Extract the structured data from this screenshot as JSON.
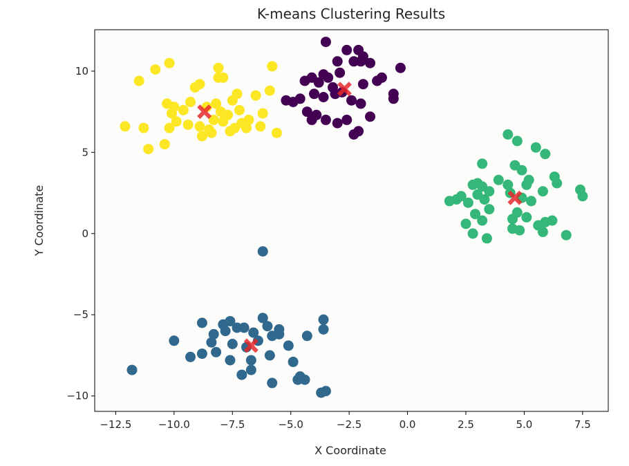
{
  "chart_data": {
    "type": "scatter",
    "title": "K-means Clustering Results",
    "xlabel": "X Coordinate",
    "ylabel": "Y Coordinate",
    "xlim": [
      -13.4,
      8.6
    ],
    "ylim": [
      -10.95,
      12.55
    ],
    "xticks": [
      -12.5,
      -10.0,
      -7.5,
      -5.0,
      -2.5,
      0.0,
      2.5,
      5.0,
      7.5
    ],
    "xtick_labels": [
      "−12.5",
      "−10.0",
      "−7.5",
      "−5.0",
      "−2.5",
      "0.0",
      "2.5",
      "5.0",
      "7.5"
    ],
    "yticks": [
      -10,
      -5,
      0,
      5,
      10
    ],
    "ytick_labels": [
      "−10",
      "−5",
      "0",
      "5",
      "10"
    ],
    "grid": false,
    "point_color_hex": [
      "#fde725",
      "#440154",
      "#35b779",
      "#31688e"
    ],
    "centroid_color": "#e8282b",
    "centroid_marker": "X",
    "series": [
      {
        "color": "#fde725",
        "points": [
          [
            -12.1,
            6.6
          ],
          [
            -11.5,
            9.4
          ],
          [
            -11.3,
            6.5
          ],
          [
            -11.1,
            5.2
          ],
          [
            -10.8,
            10.1
          ],
          [
            -10.4,
            5.5
          ],
          [
            -10.2,
            10.5
          ],
          [
            -10.3,
            8.0
          ],
          [
            -10.1,
            7.4
          ],
          [
            -10.2,
            6.5
          ],
          [
            -10.0,
            7.8
          ],
          [
            -9.9,
            6.9
          ],
          [
            -9.6,
            7.6
          ],
          [
            -9.3,
            8.1
          ],
          [
            -9.1,
            9.0
          ],
          [
            -8.9,
            9.2
          ],
          [
            -8.9,
            6.6
          ],
          [
            -8.8,
            6.0
          ],
          [
            -8.6,
            7.8
          ],
          [
            -8.4,
            6.2
          ],
          [
            -8.3,
            7.0
          ],
          [
            -8.2,
            8.0
          ],
          [
            -8.1,
            9.6
          ],
          [
            -8.1,
            10.2
          ],
          [
            -7.9,
            9.6
          ],
          [
            -7.9,
            6.9
          ],
          [
            -7.7,
            7.3
          ],
          [
            -7.6,
            6.3
          ],
          [
            -7.5,
            8.2
          ],
          [
            -7.3,
            8.6
          ],
          [
            -7.2,
            7.6
          ],
          [
            -7.1,
            6.8
          ],
          [
            -6.9,
            6.5
          ],
          [
            -6.8,
            7.0
          ],
          [
            -6.5,
            8.5
          ],
          [
            -6.3,
            6.6
          ],
          [
            -6.2,
            7.4
          ],
          [
            -5.9,
            8.8
          ],
          [
            -5.8,
            10.3
          ],
          [
            -5.6,
            6.2
          ],
          [
            -8.5,
            6.4
          ],
          [
            -7.4,
            6.5
          ],
          [
            -8.0,
            7.5
          ],
          [
            -9.4,
            6.7
          ]
        ]
      },
      {
        "color": "#440154",
        "points": [
          [
            -3.5,
            11.8
          ],
          [
            -2.6,
            11.3
          ],
          [
            -2.1,
            11.3
          ],
          [
            -1.9,
            10.9
          ],
          [
            -3.0,
            10.6
          ],
          [
            -2.3,
            10.6
          ],
          [
            -2.0,
            10.6
          ],
          [
            -1.6,
            10.5
          ],
          [
            -0.3,
            10.2
          ],
          [
            -3.6,
            9.8
          ],
          [
            -3.4,
            9.6
          ],
          [
            -2.9,
            9.9
          ],
          [
            -4.4,
            9.4
          ],
          [
            -4.1,
            9.6
          ],
          [
            -3.8,
            9.3
          ],
          [
            -3.2,
            9.0
          ],
          [
            -1.9,
            9.2
          ],
          [
            -1.3,
            9.4
          ],
          [
            -1.1,
            9.6
          ],
          [
            -4.6,
            8.3
          ],
          [
            -4.0,
            8.6
          ],
          [
            -3.6,
            8.4
          ],
          [
            -3.1,
            8.6
          ],
          [
            -2.8,
            8.7
          ],
          [
            -2.4,
            8.2
          ],
          [
            -2.0,
            8.0
          ],
          [
            -0.6,
            8.6
          ],
          [
            -0.6,
            8.3
          ],
          [
            -5.2,
            8.2
          ],
          [
            -4.9,
            8.1
          ],
          [
            -4.3,
            7.5
          ],
          [
            -3.9,
            7.3
          ],
          [
            -3.5,
            7.0
          ],
          [
            -3.0,
            6.8
          ],
          [
            -2.6,
            7.0
          ],
          [
            -2.3,
            6.1
          ],
          [
            -2.1,
            6.3
          ],
          [
            -1.6,
            7.2
          ],
          [
            -4.1,
            7.0
          ]
        ]
      },
      {
        "color": "#35b779",
        "points": [
          [
            4.3,
            6.1
          ],
          [
            4.7,
            5.7
          ],
          [
            5.5,
            5.3
          ],
          [
            5.9,
            4.9
          ],
          [
            3.2,
            4.3
          ],
          [
            4.6,
            4.2
          ],
          [
            4.9,
            3.9
          ],
          [
            5.2,
            3.3
          ],
          [
            6.3,
            3.5
          ],
          [
            2.8,
            3.0
          ],
          [
            3.0,
            3.1
          ],
          [
            3.2,
            2.9
          ],
          [
            3.5,
            2.6
          ],
          [
            3.9,
            3.3
          ],
          [
            4.3,
            3.0
          ],
          [
            5.1,
            3.0
          ],
          [
            6.4,
            3.1
          ],
          [
            5.8,
            2.6
          ],
          [
            7.4,
            2.7
          ],
          [
            7.5,
            2.3
          ],
          [
            2.1,
            2.1
          ],
          [
            2.3,
            2.3
          ],
          [
            2.6,
            1.9
          ],
          [
            3.0,
            2.4
          ],
          [
            3.3,
            2.1
          ],
          [
            4.4,
            2.5
          ],
          [
            5.3,
            2.0
          ],
          [
            4.9,
            2.2
          ],
          [
            1.8,
            2.0
          ],
          [
            3.5,
            1.5
          ],
          [
            2.9,
            1.2
          ],
          [
            3.2,
            0.8
          ],
          [
            4.7,
            1.3
          ],
          [
            5.1,
            1.0
          ],
          [
            4.5,
            0.9
          ],
          [
            5.9,
            0.7
          ],
          [
            6.2,
            0.8
          ],
          [
            5.6,
            0.5
          ],
          [
            2.5,
            0.6
          ],
          [
            2.8,
            0.0
          ],
          [
            4.5,
            0.3
          ],
          [
            4.8,
            0.2
          ],
          [
            5.8,
            0.1
          ],
          [
            3.4,
            -0.3
          ],
          [
            6.8,
            -0.1
          ]
        ]
      },
      {
        "color": "#31688e",
        "points": [
          [
            -6.2,
            -1.1
          ],
          [
            -8.8,
            -5.5
          ],
          [
            -7.9,
            -5.6
          ],
          [
            -7.6,
            -5.4
          ],
          [
            -7.0,
            -5.8
          ],
          [
            -6.2,
            -5.2
          ],
          [
            -6.0,
            -5.7
          ],
          [
            -5.5,
            -5.9
          ],
          [
            -3.6,
            -5.3
          ],
          [
            -3.6,
            -5.9
          ],
          [
            -8.3,
            -6.2
          ],
          [
            -7.8,
            -6.0
          ],
          [
            -7.3,
            -5.8
          ],
          [
            -6.6,
            -6.1
          ],
          [
            -6.4,
            -6.6
          ],
          [
            -5.8,
            -6.3
          ],
          [
            -5.5,
            -6.2
          ],
          [
            -4.3,
            -6.3
          ],
          [
            -10.0,
            -6.6
          ],
          [
            -8.4,
            -6.7
          ],
          [
            -7.5,
            -6.8
          ],
          [
            -6.9,
            -7.0
          ],
          [
            -8.2,
            -7.3
          ],
          [
            -8.8,
            -7.4
          ],
          [
            -9.3,
            -7.6
          ],
          [
            -7.6,
            -7.8
          ],
          [
            -6.7,
            -7.8
          ],
          [
            -5.9,
            -7.5
          ],
          [
            -5.1,
            -6.9
          ],
          [
            -4.9,
            -7.9
          ],
          [
            -7.1,
            -8.7
          ],
          [
            -6.7,
            -8.4
          ],
          [
            -4.6,
            -8.8
          ],
          [
            -4.4,
            -9.0
          ],
          [
            -4.7,
            -9.0
          ],
          [
            -5.8,
            -9.2
          ],
          [
            -3.5,
            -9.7
          ],
          [
            -3.7,
            -9.8
          ],
          [
            -11.8,
            -8.4
          ]
        ]
      }
    ],
    "centroids": [
      [
        -8.7,
        7.5
      ],
      [
        -2.7,
        8.9
      ],
      [
        4.6,
        2.2
      ],
      [
        -6.7,
        -6.9
      ]
    ]
  }
}
